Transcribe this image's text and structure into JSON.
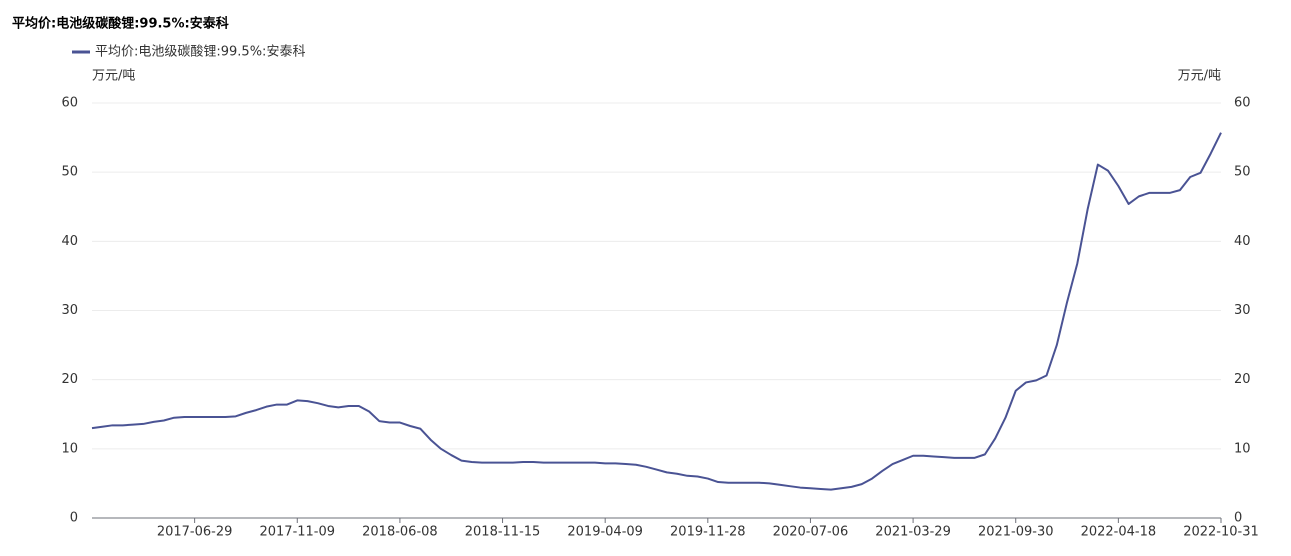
{
  "chart_data": {
    "type": "line",
    "title": "平均价:电池级碳酸锂:99.5%:安泰科",
    "y_label": "万元/吨",
    "y2_label": "万元/吨",
    "categories": [
      null,
      null,
      null,
      null,
      null,
      null,
      null,
      null,
      null,
      null,
      "2017-06-29",
      null,
      null,
      null,
      null,
      null,
      null,
      null,
      null,
      null,
      "2017-11-09",
      null,
      null,
      null,
      null,
      null,
      null,
      null,
      null,
      null,
      "2018-06-08",
      null,
      null,
      null,
      null,
      null,
      null,
      null,
      null,
      null,
      "2018-11-15",
      null,
      null,
      null,
      null,
      null,
      null,
      null,
      null,
      null,
      "2019-04-09",
      null,
      null,
      null,
      null,
      null,
      null,
      null,
      null,
      null,
      "2019-11-28",
      null,
      null,
      null,
      null,
      null,
      null,
      null,
      null,
      null,
      "2020-07-06",
      null,
      null,
      null,
      null,
      null,
      null,
      null,
      null,
      null,
      "2021-03-29",
      null,
      null,
      null,
      null,
      null,
      null,
      null,
      null,
      null,
      "2021-09-30",
      null,
      null,
      null,
      null,
      null,
      null,
      null,
      null,
      null,
      "2022-04-18",
      null,
      null,
      null,
      null,
      null,
      null,
      null,
      null,
      null,
      "2022-10-31"
    ],
    "series": [
      {
        "name": "平均价:电池级碳酸锂:99.5%:安泰科",
        "color": "#4a5394",
        "values": [
          13.0,
          13.2,
          13.4,
          13.4,
          13.5,
          13.6,
          13.9,
          14.1,
          14.5,
          14.6,
          14.6,
          14.6,
          14.6,
          14.6,
          14.7,
          15.2,
          15.6,
          16.1,
          16.4,
          16.4,
          17.0,
          16.9,
          16.6,
          16.2,
          16.0,
          16.2,
          16.2,
          15.4,
          14.0,
          13.8,
          13.8,
          13.3,
          12.9,
          11.3,
          10.0,
          9.1,
          8.3,
          8.1,
          8.0,
          8.0,
          8.0,
          8.0,
          8.1,
          8.1,
          8.0,
          8.0,
          8.0,
          8.0,
          8.0,
          8.0,
          7.9,
          7.9,
          7.8,
          7.7,
          7.4,
          7.0,
          6.6,
          6.4,
          6.1,
          6.0,
          5.7,
          5.2,
          5.1,
          5.1,
          5.1,
          5.1,
          5.0,
          4.8,
          4.6,
          4.4,
          4.3,
          4.2,
          4.1,
          4.3,
          4.5,
          4.9,
          5.7,
          6.8,
          7.8,
          8.4,
          9.0,
          9.0,
          8.9,
          8.8,
          8.7,
          8.7,
          8.7,
          9.2,
          11.5,
          14.5,
          18.4,
          19.6,
          19.9,
          20.6,
          25.0,
          31.2,
          36.8,
          44.6,
          51.1,
          50.2,
          48.0,
          45.4,
          46.5,
          47.0,
          47.0,
          47.0,
          47.4,
          49.3,
          49.9,
          52.7,
          55.7
        ]
      }
    ],
    "ylim": [
      0,
      60
    ],
    "yticks": [
      0,
      10,
      20,
      30,
      40,
      50,
      60
    ],
    "y2lim": [
      0,
      60
    ],
    "y2ticks": [
      0,
      10,
      20,
      30,
      40,
      50,
      60
    ],
    "grid": true
  }
}
